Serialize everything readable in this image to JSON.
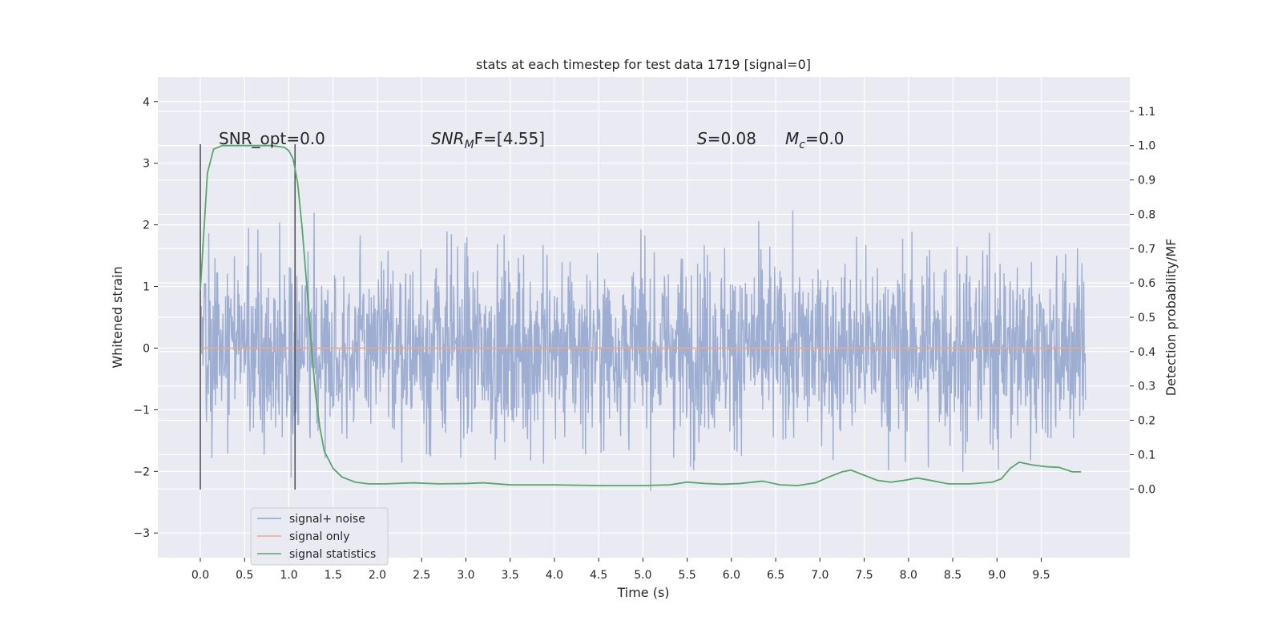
{
  "chart_data": {
    "type": "line",
    "title": "stats at each timestep for test data 1719 [signal=0]",
    "xlabel": "Time (s)",
    "ylabel": "Whitened strain",
    "ylabel_right": "Detection probability/MF",
    "xlim": [
      -0.48,
      10.5
    ],
    "ylim": [
      -3.4,
      4.4
    ],
    "ylim_right": [
      -0.2,
      1.2
    ],
    "x_ticks": [
      "0.0",
      "0.5",
      "1.0",
      "1.5",
      "2.0",
      "2.5",
      "3.0",
      "3.5",
      "4.0",
      "4.5",
      "5.0",
      "5.5",
      "6.0",
      "6.5",
      "7.0",
      "7.5",
      "8.0",
      "8.5",
      "9.0",
      "9.5"
    ],
    "y_ticks": [
      "4",
      "3",
      "2",
      "1",
      "0",
      "−1",
      "−2",
      "−3"
    ],
    "y_right_ticks": [
      "1.1",
      "1.0",
      "0.9",
      "0.8",
      "0.7",
      "0.6",
      "0.5",
      "0.4",
      "0.3",
      "0.2",
      "0.1",
      "0.0"
    ],
    "grid": true,
    "legend_position": "lower-left",
    "annotations": {
      "snr_opt": "SNR_opt=0.0",
      "snr_mf_prefix": "SNR",
      "snr_mf_sub1": "M",
      "snr_mf_rest": "F=[4.55]",
      "s_label": "S",
      "s_value": "=0.08",
      "mc_label": "M",
      "mc_sub": "c",
      "mc_value": "=0.0"
    },
    "vertical_lines_x": [
      0.0,
      1.07
    ],
    "series": [
      {
        "name": "signal+ noise",
        "color": "#8fa3cd",
        "description_range": [
          -3.0,
          4.05
        ],
        "time_range": [
          0.0,
          10.0
        ],
        "samples": 2000
      },
      {
        "name": "signal only",
        "color": "#e9a98c",
        "x": [
          0.0,
          10.0
        ],
        "y": [
          0.0,
          0.0
        ]
      },
      {
        "name": "signal statistics",
        "color": "#55a868",
        "axis": "right",
        "x": [
          0.0,
          0.04,
          0.08,
          0.15,
          0.25,
          0.4,
          0.6,
          0.8,
          0.95,
          1.0,
          1.05,
          1.1,
          1.15,
          1.2,
          1.25,
          1.3,
          1.35,
          1.4,
          1.5,
          1.6,
          1.75,
          1.9,
          2.1,
          2.4,
          2.7,
          3.0,
          3.2,
          3.5,
          4.0,
          4.5,
          5.0,
          5.3,
          5.5,
          5.7,
          5.9,
          6.1,
          6.35,
          6.55,
          6.75,
          6.95,
          7.1,
          7.25,
          7.35,
          7.5,
          7.65,
          7.8,
          7.95,
          8.1,
          8.25,
          8.45,
          8.7,
          8.95,
          9.05,
          9.15,
          9.25,
          9.4,
          9.55,
          9.7,
          9.85,
          9.95
        ],
        "y": [
          0.58,
          0.75,
          0.92,
          0.99,
          1.0,
          1.0,
          1.0,
          1.0,
          0.995,
          0.985,
          0.96,
          0.89,
          0.76,
          0.6,
          0.43,
          0.28,
          0.18,
          0.11,
          0.06,
          0.035,
          0.02,
          0.015,
          0.015,
          0.018,
          0.015,
          0.016,
          0.018,
          0.012,
          0.012,
          0.01,
          0.01,
          0.012,
          0.02,
          0.016,
          0.014,
          0.016,
          0.023,
          0.012,
          0.01,
          0.018,
          0.035,
          0.05,
          0.055,
          0.04,
          0.025,
          0.02,
          0.025,
          0.032,
          0.025,
          0.015,
          0.015,
          0.02,
          0.03,
          0.06,
          0.078,
          0.07,
          0.065,
          0.063,
          0.05,
          0.05
        ]
      }
    ]
  }
}
